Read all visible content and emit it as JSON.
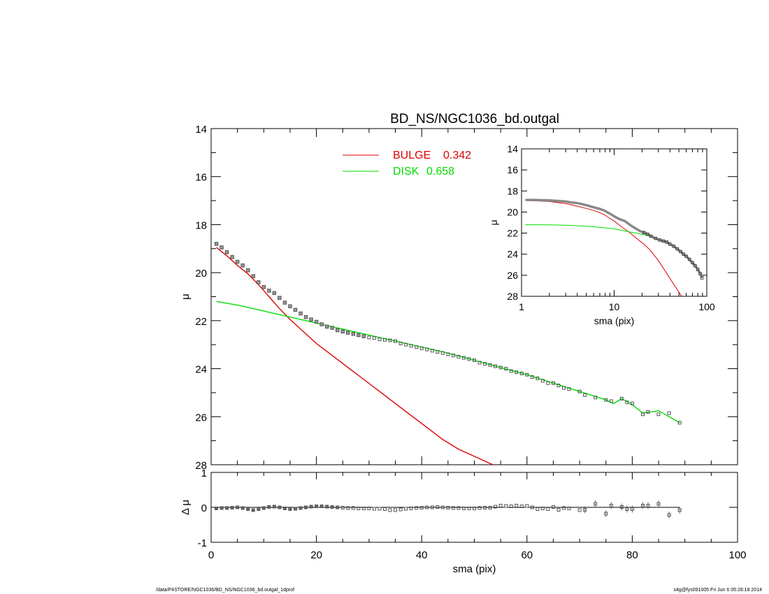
{
  "chart_data": [
    {
      "panel": "main",
      "type": "line",
      "title": "BD_NS/NGC1036_bd.outgal",
      "xlabel": "",
      "ylabel": "μ",
      "xlim": [
        0,
        100
      ],
      "ylim": [
        28,
        14
      ],
      "yticks": [
        14,
        16,
        18,
        20,
        22,
        24,
        26,
        28
      ],
      "legend": {
        "placement": "top-center"
      },
      "series": [
        {
          "name": "BULGE",
          "legend_value": "0.342",
          "color": "#dd0000",
          "style": "line",
          "x": [
            1,
            3,
            5,
            7,
            9,
            11,
            13,
            15,
            17,
            20,
            23,
            26,
            29,
            32,
            35,
            38,
            41,
            44,
            47,
            50,
            53.5
          ],
          "y": [
            18.95,
            19.3,
            19.7,
            20.05,
            20.5,
            21.0,
            21.5,
            21.95,
            22.35,
            22.95,
            23.45,
            23.95,
            24.45,
            24.95,
            25.45,
            25.95,
            26.45,
            26.95,
            27.35,
            27.65,
            28.0
          ]
        },
        {
          "name": "DISK",
          "legend_value": "0.658",
          "color": "#00dd00",
          "style": "line",
          "x": [
            1,
            5,
            10,
            15,
            20,
            25,
            30,
            35,
            40,
            45,
            50,
            55,
            60,
            65,
            70,
            75,
            76.5,
            78,
            80,
            82,
            85,
            89
          ],
          "y": [
            21.2,
            21.35,
            21.6,
            21.85,
            22.1,
            22.35,
            22.6,
            22.85,
            23.1,
            23.35,
            23.65,
            23.95,
            24.25,
            24.6,
            24.95,
            25.3,
            25.45,
            25.25,
            25.5,
            25.85,
            25.75,
            26.25
          ]
        },
        {
          "name": "data",
          "color": "#555555",
          "style": "markers",
          "x": [
            1,
            2,
            3,
            4,
            5,
            6,
            7,
            8,
            9,
            10,
            11,
            12,
            13,
            14,
            15,
            16,
            17,
            18,
            19,
            20,
            21,
            22,
            23,
            24,
            25,
            26,
            27,
            28,
            29,
            30,
            31,
            32,
            33,
            34,
            35,
            36,
            37,
            38,
            39,
            40,
            41,
            42,
            43,
            44,
            45,
            46,
            47,
            48,
            49,
            50,
            51,
            52,
            53,
            54,
            55,
            56,
            57,
            58,
            59,
            60,
            61,
            62,
            63,
            64,
            65,
            66,
            67,
            68,
            70,
            71,
            73,
            75,
            76,
            78,
            79,
            80,
            82,
            83,
            85,
            87,
            89
          ],
          "y": [
            18.8,
            18.95,
            19.15,
            19.35,
            19.55,
            19.7,
            19.9,
            20.15,
            20.4,
            20.6,
            20.75,
            20.85,
            21.05,
            21.25,
            21.4,
            21.55,
            21.7,
            21.85,
            21.95,
            22.05,
            22.15,
            22.25,
            22.3,
            22.4,
            22.45,
            22.5,
            22.55,
            22.6,
            22.65,
            22.7,
            22.72,
            22.78,
            22.8,
            22.82,
            22.85,
            22.95,
            23.0,
            23.05,
            23.1,
            23.15,
            23.2,
            23.25,
            23.3,
            23.35,
            23.4,
            23.45,
            23.5,
            23.55,
            23.6,
            23.65,
            23.75,
            23.8,
            23.85,
            23.9,
            23.95,
            24.0,
            24.1,
            24.15,
            24.2,
            24.25,
            24.35,
            24.4,
            24.5,
            24.6,
            24.6,
            24.7,
            24.8,
            24.85,
            24.95,
            25.1,
            25.2,
            25.3,
            25.35,
            25.25,
            25.4,
            25.45,
            25.9,
            25.8,
            25.9,
            25.85,
            26.25
          ]
        }
      ]
    },
    {
      "panel": "residual",
      "type": "scatter",
      "xlabel": "sma (pix)",
      "ylabel": "Δ μ",
      "xlim": [
        0,
        100
      ],
      "ylim": [
        -1,
        1
      ],
      "xticks": [
        0,
        20,
        40,
        60,
        80,
        100
      ],
      "yticks": [
        -1,
        0,
        1
      ],
      "zero_line": true,
      "series": [
        {
          "name": "residuals",
          "color": "#555555",
          "x": [
            1,
            2,
            3,
            4,
            5,
            6,
            7,
            8,
            9,
            10,
            11,
            12,
            13,
            14,
            15,
            16,
            17,
            18,
            19,
            20,
            21,
            22,
            23,
            24,
            25,
            26,
            27,
            28,
            29,
            30,
            31,
            32,
            33,
            34,
            35,
            36,
            37,
            38,
            39,
            40,
            41,
            42,
            43,
            44,
            45,
            46,
            47,
            48,
            49,
            50,
            51,
            52,
            53,
            54,
            55,
            56,
            57,
            58,
            59,
            60,
            61,
            62,
            63,
            64,
            65,
            66,
            67,
            68,
            70,
            71,
            73,
            75,
            76,
            78,
            79,
            80,
            82,
            83,
            85,
            87,
            89
          ],
          "y": [
            -0.03,
            -0.02,
            -0.02,
            -0.01,
            0.0,
            -0.02,
            -0.05,
            -0.08,
            -0.05,
            -0.02,
            0.01,
            0.02,
            0.0,
            -0.03,
            -0.05,
            -0.04,
            -0.02,
            0.0,
            0.02,
            0.03,
            0.03,
            0.02,
            0.01,
            0.0,
            -0.01,
            -0.02,
            -0.02,
            -0.03,
            -0.03,
            -0.03,
            -0.04,
            -0.04,
            -0.05,
            -0.08,
            -0.08,
            -0.06,
            -0.04,
            -0.03,
            -0.02,
            -0.01,
            0.0,
            0.0,
            0.01,
            0.0,
            -0.01,
            -0.02,
            -0.02,
            -0.03,
            -0.03,
            -0.03,
            -0.02,
            -0.01,
            -0.01,
            0.02,
            0.05,
            0.04,
            0.03,
            0.05,
            0.03,
            0.04,
            0.0,
            -0.05,
            -0.03,
            -0.05,
            0.01,
            -0.07,
            -0.02,
            -0.03,
            -0.08,
            -0.07,
            0.1,
            -0.18,
            0.05,
            0.01,
            -0.05,
            -0.05,
            0.05,
            0.05,
            0.1,
            -0.22,
            -0.08
          ]
        }
      ]
    },
    {
      "panel": "inset",
      "type": "line",
      "xlabel": "sma (pix)",
      "ylabel": "μ",
      "xscale": "log",
      "xlim": [
        1,
        100
      ],
      "ylim": [
        28,
        14
      ],
      "xticks": [
        1,
        10,
        100
      ],
      "yticks": [
        14,
        16,
        18,
        20,
        22,
        24,
        26,
        28
      ],
      "series": [
        {
          "name": "BULGE",
          "color": "#dd0000",
          "x": [
            1.1,
            1.5,
            2,
            3,
            4,
            5,
            6,
            7,
            8,
            9,
            10,
            12,
            15,
            18,
            21,
            25,
            30,
            35,
            40,
            45,
            50,
            53.5
          ],
          "y": [
            18.9,
            18.95,
            19.0,
            19.2,
            19.45,
            19.65,
            19.85,
            20.05,
            20.3,
            20.6,
            20.85,
            21.4,
            22.0,
            22.6,
            23.05,
            23.7,
            24.6,
            25.5,
            26.3,
            27.0,
            27.6,
            28.0
          ]
        },
        {
          "name": "DISK",
          "color": "#00dd00",
          "x": [
            1.1,
            2,
            3,
            5,
            7,
            10,
            15,
            20,
            25,
            30,
            40,
            50,
            60,
            70,
            80,
            89
          ],
          "y": [
            21.2,
            21.22,
            21.25,
            21.35,
            21.45,
            21.6,
            21.9,
            22.1,
            22.35,
            22.6,
            23.1,
            23.65,
            24.25,
            24.95,
            25.5,
            26.25
          ]
        },
        {
          "name": "data",
          "color": "#555555",
          "x": [
            1.1,
            1.3,
            1.6,
            2,
            2.5,
            3,
            3.5,
            4,
            5,
            6,
            7,
            8,
            9,
            10,
            11,
            12,
            13,
            14,
            15,
            17,
            19,
            21,
            23,
            25,
            28,
            31,
            34,
            37,
            40,
            44,
            48,
            52,
            56,
            60,
            65,
            70,
            75,
            80,
            85,
            89
          ],
          "y": [
            18.85,
            18.85,
            18.87,
            18.9,
            18.95,
            19.0,
            19.1,
            19.15,
            19.35,
            19.55,
            19.7,
            19.9,
            20.15,
            20.4,
            20.6,
            20.75,
            20.85,
            21.05,
            21.25,
            21.55,
            21.8,
            21.95,
            22.1,
            22.3,
            22.5,
            22.65,
            22.75,
            22.85,
            23.05,
            23.25,
            23.5,
            23.75,
            24.0,
            24.2,
            24.5,
            24.8,
            25.1,
            25.45,
            25.85,
            26.25
          ]
        }
      ]
    }
  ],
  "footer": {
    "left": "/data/P4STORE/NGC1036/BD_NS/NGC1036_bd.outgal_1dprof",
    "right": "s4g@fys091005  Fri Jun  6 05:28:18 2014"
  }
}
